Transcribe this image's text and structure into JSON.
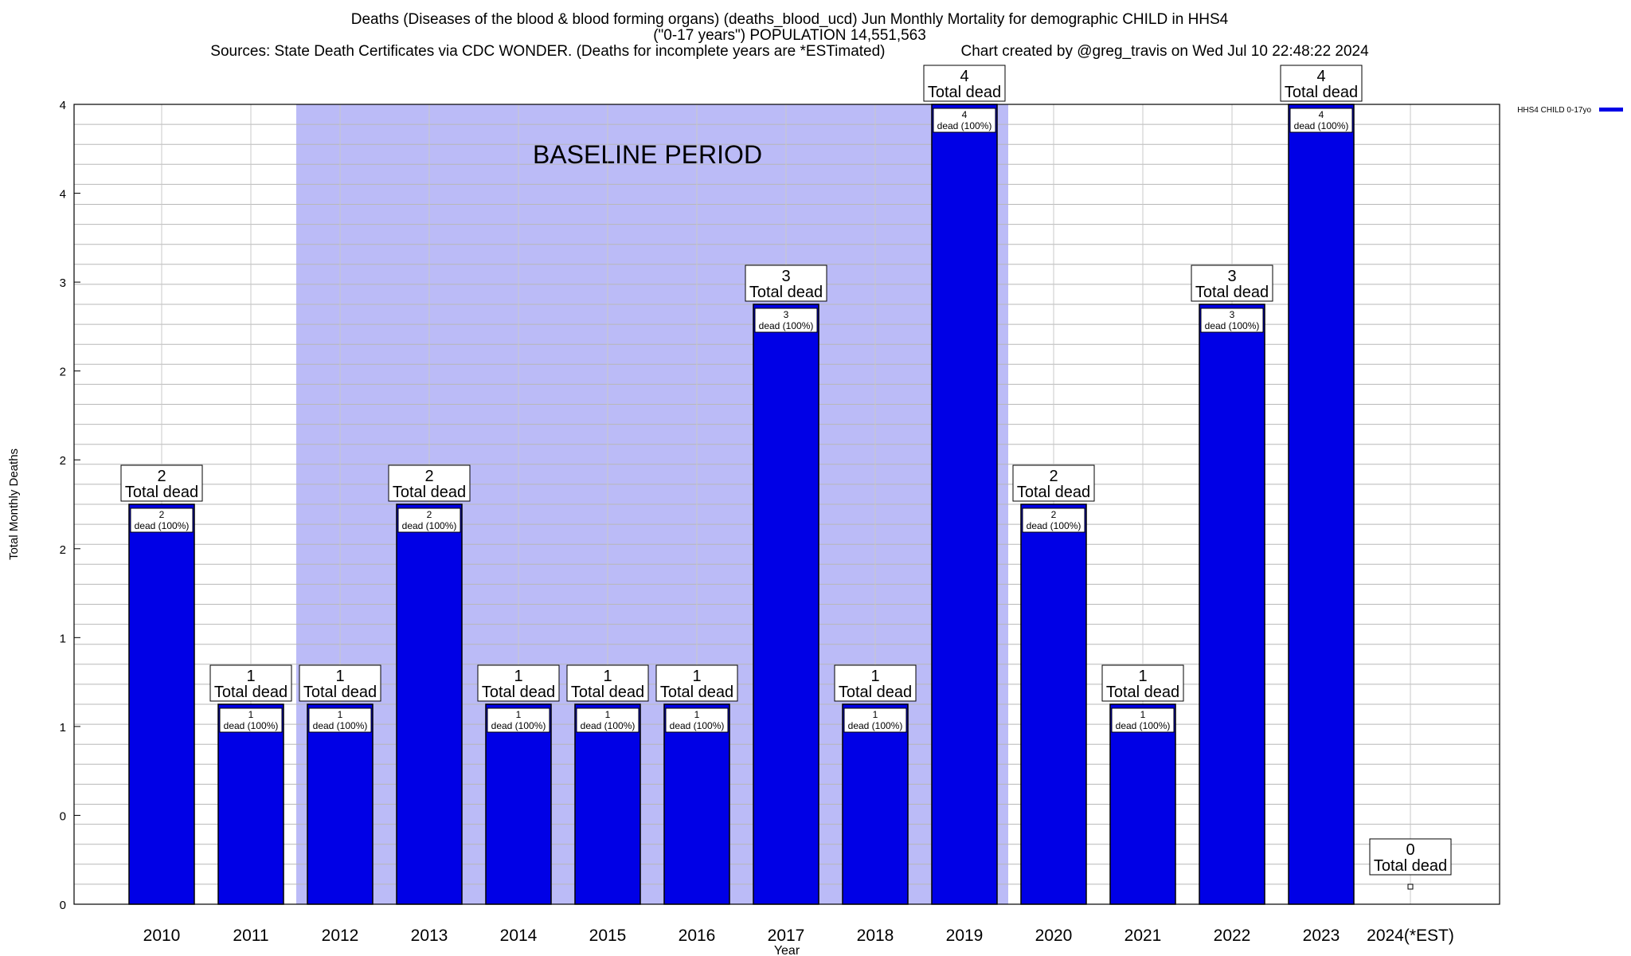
{
  "title": {
    "line1": "Deaths (Diseases of the blood & blood forming organs) (deaths_blood_ucd) Jun Monthly Mortality for demographic CHILD in HHS4",
    "line2": "(\"0-17 years\") POPULATION 14,551,563",
    "line3_sources": "Sources: State Death Certificates via CDC WONDER. (Deaths for incomplete years are *ESTimated)",
    "line3_credit": "Chart created by @greg_travis on Wed Jul 10 22:48:22 2024"
  },
  "chart_data": {
    "type": "bar",
    "title": "Deaths (Diseases of the blood & blood forming organs) (deaths_blood_ucd) Jun Monthly Mortality for demographic CHILD in HHS4",
    "xlabel": "Year",
    "ylabel": "Total Monthly Deaths",
    "categories": [
      "2010",
      "2011",
      "2012",
      "2013",
      "2014",
      "2015",
      "2016",
      "2017",
      "2018",
      "2019",
      "2020",
      "2021",
      "2022",
      "2023",
      "2024(*EST)"
    ],
    "series": [
      {
        "name": "HHS4 CHILD 0-17yo",
        "color": "#0000e6",
        "values": [
          2,
          1,
          1,
          2,
          1,
          1,
          1,
          3,
          1,
          4,
          2,
          1,
          3,
          4,
          0
        ]
      }
    ],
    "ylim": [
      0,
      4
    ],
    "ytick_labels": [
      "0",
      "0",
      "1",
      "1",
      "2",
      "2",
      "2",
      "3",
      "4",
      "4"
    ],
    "grid": true,
    "legend_position": "top-right",
    "baseline": {
      "label": "BASELINE PERIOD",
      "start": "2012",
      "end": "2019",
      "color": "#bbbbf7"
    },
    "total_label_suffix": "Total dead",
    "inner_label_suffix": "dead (100%)"
  }
}
